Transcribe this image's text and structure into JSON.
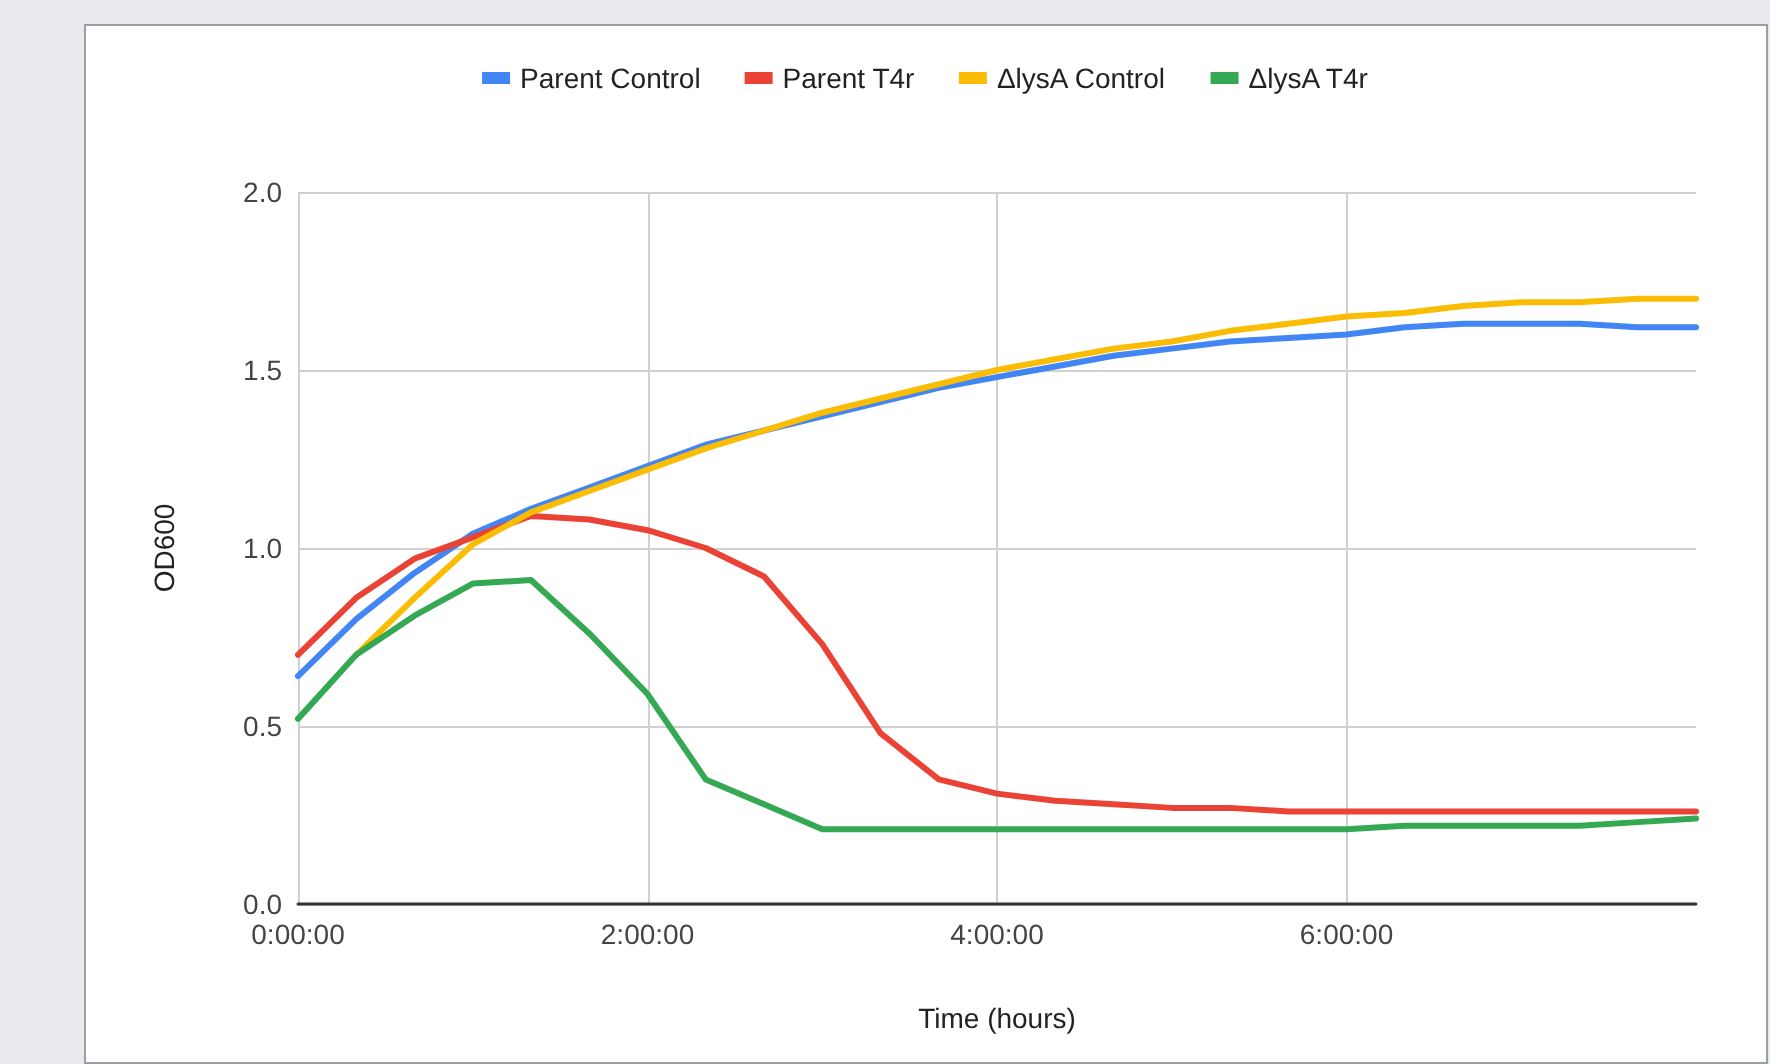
{
  "chart_data": {
    "type": "line",
    "xlabel": "Time (hours)",
    "ylabel": "OD600",
    "x": [
      0,
      0.333,
      0.667,
      1,
      1.333,
      1.667,
      2,
      2.333,
      2.667,
      3,
      3.333,
      3.667,
      4,
      4.333,
      4.667,
      5,
      5.333,
      5.667,
      6,
      6.333,
      6.667,
      7,
      7.333,
      7.667,
      8
    ],
    "series": [
      {
        "name": "Parent Control",
        "color": "#4285f4",
        "values": [
          0.64,
          0.8,
          0.93,
          1.04,
          1.11,
          1.17,
          1.23,
          1.29,
          1.33,
          1.37,
          1.41,
          1.45,
          1.48,
          1.51,
          1.54,
          1.56,
          1.58,
          1.59,
          1.6,
          1.62,
          1.63,
          1.63,
          1.63,
          1.62,
          1.62
        ]
      },
      {
        "name": "Parent T4r",
        "color": "#ea4335",
        "values": [
          0.7,
          0.86,
          0.97,
          1.03,
          1.09,
          1.08,
          1.05,
          1.0,
          0.92,
          0.73,
          0.48,
          0.35,
          0.31,
          0.29,
          0.28,
          0.27,
          0.27,
          0.26,
          0.26,
          0.26,
          0.26,
          0.26,
          0.26,
          0.26,
          0.26
        ]
      },
      {
        "name": "ΔlysA Control",
        "color": "#fbbc04",
        "values": [
          null,
          0.7,
          0.86,
          1.01,
          1.1,
          1.16,
          1.22,
          1.28,
          1.33,
          1.38,
          1.42,
          1.46,
          1.5,
          1.53,
          1.56,
          1.58,
          1.61,
          1.63,
          1.65,
          1.66,
          1.68,
          1.69,
          1.69,
          1.7,
          1.7
        ]
      },
      {
        "name": "ΔlysA T4r",
        "color": "#34a853",
        "values": [
          0.52,
          0.7,
          0.81,
          0.9,
          0.91,
          0.76,
          0.59,
          0.35,
          0.28,
          0.21,
          0.21,
          0.21,
          0.21,
          0.21,
          0.21,
          0.21,
          0.21,
          0.21,
          0.21,
          0.22,
          0.22,
          0.22,
          0.22,
          0.23,
          0.24
        ]
      }
    ],
    "xlim": [
      0,
      8
    ],
    "xticks": [
      {
        "value": 0,
        "label": "0:00:00"
      },
      {
        "value": 2,
        "label": "2:00:00"
      },
      {
        "value": 4,
        "label": "4:00:00"
      },
      {
        "value": 6,
        "label": "6:00:00"
      }
    ],
    "ylim": [
      0,
      2
    ],
    "yticks": [
      {
        "value": 0,
        "label": "0.0"
      },
      {
        "value": 0.5,
        "label": "0.5"
      },
      {
        "value": 1,
        "label": "1.0"
      },
      {
        "value": 1.5,
        "label": "1.5"
      },
      {
        "value": 2,
        "label": "2.0"
      }
    ],
    "grid": true,
    "legend": "top",
    "marker": "none",
    "line_style": "solid"
  }
}
